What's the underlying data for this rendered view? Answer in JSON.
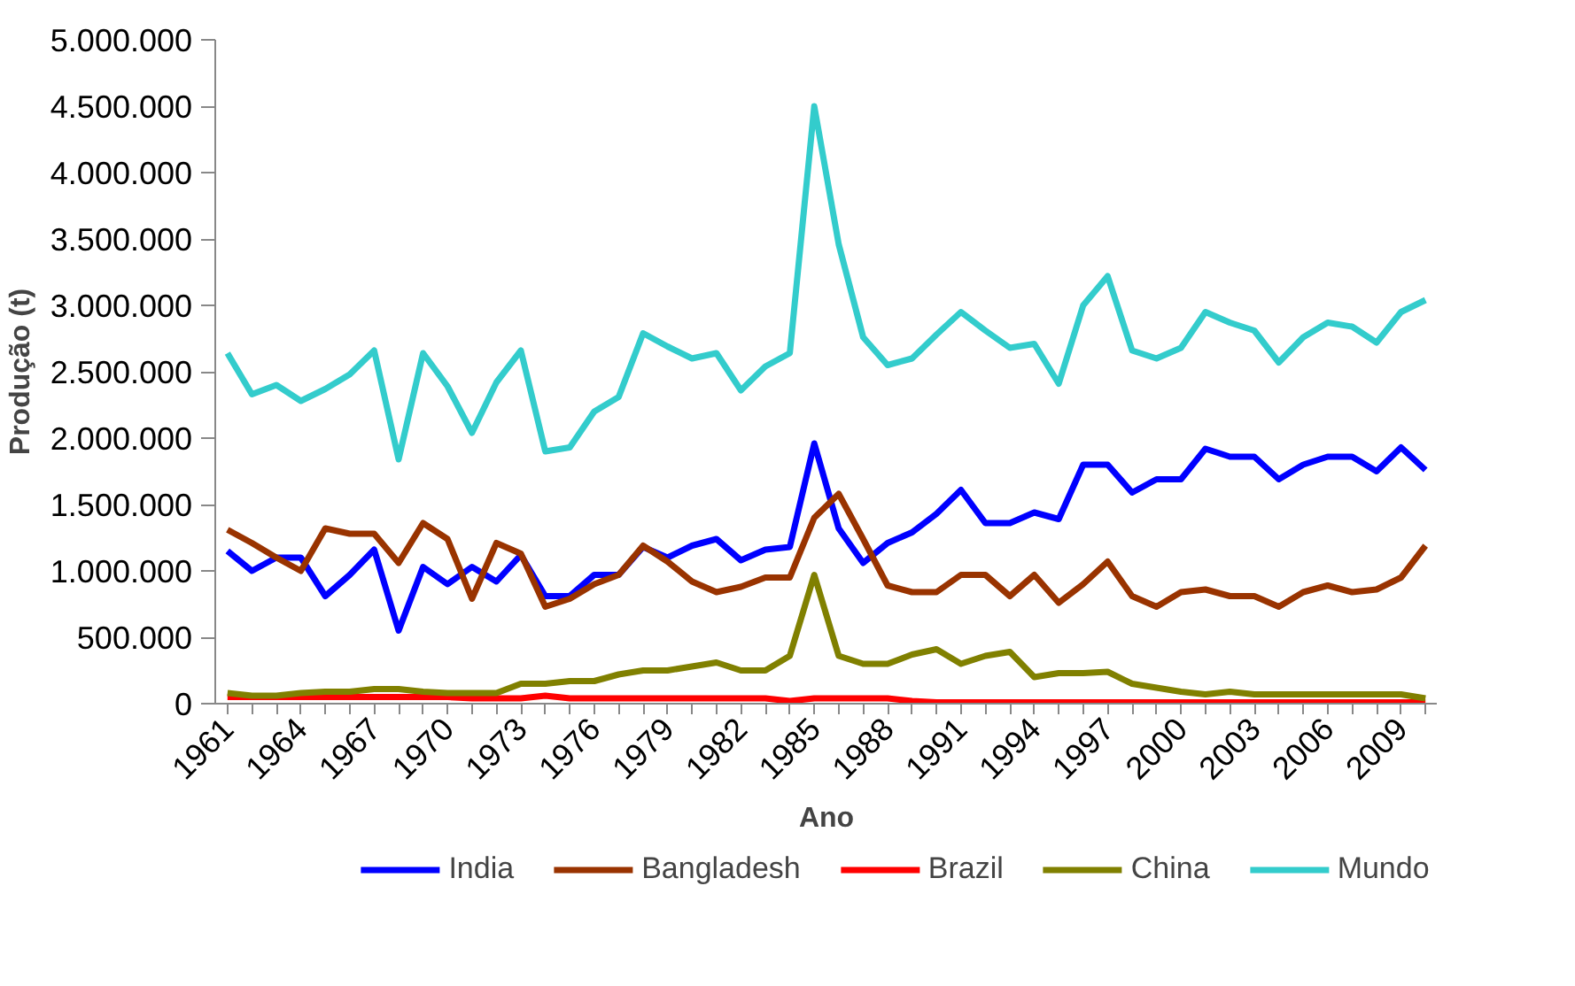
{
  "chart_data": {
    "type": "line",
    "xlabel": "Ano",
    "ylabel": "Produção (t)",
    "x": [
      1961,
      1962,
      1963,
      1964,
      1965,
      1966,
      1967,
      1968,
      1969,
      1970,
      1971,
      1972,
      1973,
      1974,
      1975,
      1976,
      1977,
      1978,
      1979,
      1980,
      1981,
      1982,
      1983,
      1984,
      1985,
      1986,
      1987,
      1988,
      1989,
      1990,
      1991,
      1992,
      1993,
      1994,
      1995,
      1996,
      1997,
      1998,
      1999,
      2000,
      2001,
      2002,
      2003,
      2004,
      2005,
      2006,
      2007,
      2008,
      2009,
      2010
    ],
    "series": [
      {
        "name": "India",
        "color": "#0000ff",
        "values": [
          1150000,
          1000000,
          1100000,
          1100000,
          810000,
          970000,
          1160000,
          550000,
          1030000,
          900000,
          1030000,
          920000,
          1120000,
          810000,
          810000,
          970000,
          970000,
          1180000,
          1100000,
          1190000,
          1240000,
          1080000,
          1160000,
          1180000,
          1960000,
          1320000,
          1060000,
          1210000,
          1290000,
          1430000,
          1610000,
          1360000,
          1360000,
          1440000,
          1390000,
          1800000,
          1800000,
          1590000,
          1690000,
          1690000,
          1920000,
          1860000,
          1860000,
          1690000,
          1800000,
          1860000,
          1860000,
          1750000,
          1930000,
          1760000
        ]
      },
      {
        "name": "Bangladesh",
        "color": "#993300",
        "values": [
          1310000,
          1210000,
          1100000,
          1000000,
          1320000,
          1280000,
          1280000,
          1060000,
          1360000,
          1240000,
          790000,
          1210000,
          1130000,
          730000,
          790000,
          900000,
          970000,
          1190000,
          1070000,
          920000,
          840000,
          880000,
          950000,
          950000,
          1400000,
          1580000,
          1240000,
          890000,
          840000,
          840000,
          970000,
          970000,
          810000,
          970000,
          760000,
          900000,
          1070000,
          810000,
          730000,
          840000,
          860000,
          810000,
          810000,
          730000,
          840000,
          890000,
          840000,
          860000,
          950000,
          1190000
        ]
      },
      {
        "name": "Brazil",
        "color": "#ff0000",
        "values": [
          50000,
          50000,
          50000,
          50000,
          50000,
          50000,
          50000,
          50000,
          50000,
          50000,
          40000,
          40000,
          40000,
          60000,
          40000,
          40000,
          40000,
          40000,
          40000,
          40000,
          40000,
          40000,
          40000,
          20000,
          40000,
          40000,
          40000,
          40000,
          20000,
          10000,
          10000,
          10000,
          10000,
          10000,
          10000,
          10000,
          10000,
          10000,
          10000,
          10000,
          10000,
          10000,
          10000,
          10000,
          10000,
          10000,
          10000,
          10000,
          10000,
          10000
        ]
      },
      {
        "name": "China",
        "color": "#808000",
        "values": [
          80000,
          60000,
          60000,
          80000,
          90000,
          90000,
          110000,
          110000,
          90000,
          80000,
          80000,
          80000,
          150000,
          150000,
          170000,
          170000,
          220000,
          250000,
          250000,
          280000,
          310000,
          250000,
          250000,
          360000,
          970000,
          360000,
          300000,
          300000,
          370000,
          410000,
          300000,
          360000,
          390000,
          200000,
          230000,
          230000,
          240000,
          150000,
          120000,
          90000,
          70000,
          90000,
          70000,
          70000,
          70000,
          70000,
          70000,
          70000,
          70000,
          40000
        ]
      },
      {
        "name": "Mundo",
        "color": "#33cccc",
        "values": [
          2640000,
          2330000,
          2400000,
          2280000,
          2370000,
          2480000,
          2660000,
          1840000,
          2640000,
          2390000,
          2040000,
          2420000,
          2660000,
          1900000,
          1930000,
          2200000,
          2310000,
          2790000,
          2690000,
          2600000,
          2640000,
          2360000,
          2540000,
          2640000,
          4500000,
          3460000,
          2760000,
          2550000,
          2600000,
          2780000,
          2950000,
          2810000,
          2680000,
          2710000,
          2410000,
          3000000,
          3220000,
          2660000,
          2600000,
          2680000,
          2950000,
          2870000,
          2810000,
          2570000,
          2760000,
          2870000,
          2840000,
          2720000,
          2950000,
          3040000
        ]
      }
    ],
    "xlim": [
      1960.5,
      2010.5
    ],
    "xticks": [
      {
        "value": 1961,
        "label": "1961"
      },
      {
        "value": 1962,
        "label": null
      },
      {
        "value": 1963,
        "label": null
      },
      {
        "value": 1964,
        "label": "1964"
      },
      {
        "value": 1965,
        "label": null
      },
      {
        "value": 1966,
        "label": null
      },
      {
        "value": 1967,
        "label": "1967"
      },
      {
        "value": 1968,
        "label": null
      },
      {
        "value": 1969,
        "label": null
      },
      {
        "value": 1970,
        "label": "1970"
      },
      {
        "value": 1971,
        "label": null
      },
      {
        "value": 1972,
        "label": null
      },
      {
        "value": 1973,
        "label": "1973"
      },
      {
        "value": 1974,
        "label": null
      },
      {
        "value": 1975,
        "label": null
      },
      {
        "value": 1976,
        "label": "1976"
      },
      {
        "value": 1977,
        "label": null
      },
      {
        "value": 1978,
        "label": null
      },
      {
        "value": 1979,
        "label": "1979"
      },
      {
        "value": 1980,
        "label": null
      },
      {
        "value": 1981,
        "label": null
      },
      {
        "value": 1982,
        "label": "1982"
      },
      {
        "value": 1983,
        "label": null
      },
      {
        "value": 1984,
        "label": null
      },
      {
        "value": 1985,
        "label": "1985"
      },
      {
        "value": 1986,
        "label": null
      },
      {
        "value": 1987,
        "label": null
      },
      {
        "value": 1988,
        "label": "1988"
      },
      {
        "value": 1989,
        "label": null
      },
      {
        "value": 1990,
        "label": null
      },
      {
        "value": 1991,
        "label": "1991"
      },
      {
        "value": 1992,
        "label": null
      },
      {
        "value": 1993,
        "label": null
      },
      {
        "value": 1994,
        "label": "1994"
      },
      {
        "value": 1995,
        "label": null
      },
      {
        "value": 1996,
        "label": null
      },
      {
        "value": 1997,
        "label": "1997"
      },
      {
        "value": 1998,
        "label": null
      },
      {
        "value": 1999,
        "label": null
      },
      {
        "value": 2000,
        "label": "2000"
      },
      {
        "value": 2001,
        "label": null
      },
      {
        "value": 2002,
        "label": null
      },
      {
        "value": 2003,
        "label": "2003"
      },
      {
        "value": 2004,
        "label": null
      },
      {
        "value": 2005,
        "label": null
      },
      {
        "value": 2006,
        "label": "2006"
      },
      {
        "value": 2007,
        "label": null
      },
      {
        "value": 2008,
        "label": null
      },
      {
        "value": 2009,
        "label": "2009"
      },
      {
        "value": 2010,
        "label": null
      }
    ],
    "ylim": [
      0,
      5000000
    ],
    "yticks": [
      {
        "value": 0,
        "label": "0"
      },
      {
        "value": 500000,
        "label": "500.000"
      },
      {
        "value": 1000000,
        "label": "1.000.000"
      },
      {
        "value": 1500000,
        "label": "1.500.000"
      },
      {
        "value": 2000000,
        "label": "2.000.000"
      },
      {
        "value": 2500000,
        "label": "2.500.000"
      },
      {
        "value": 3000000,
        "label": "3.000.000"
      },
      {
        "value": 3500000,
        "label": "3.500.000"
      },
      {
        "value": 4000000,
        "label": "4.000.000"
      },
      {
        "value": 4500000,
        "label": "4.500.000"
      },
      {
        "value": 5000000,
        "label": "5.000.000"
      }
    ],
    "grid": false,
    "legend": "bottom",
    "line_style": "solid",
    "marker": "none"
  }
}
